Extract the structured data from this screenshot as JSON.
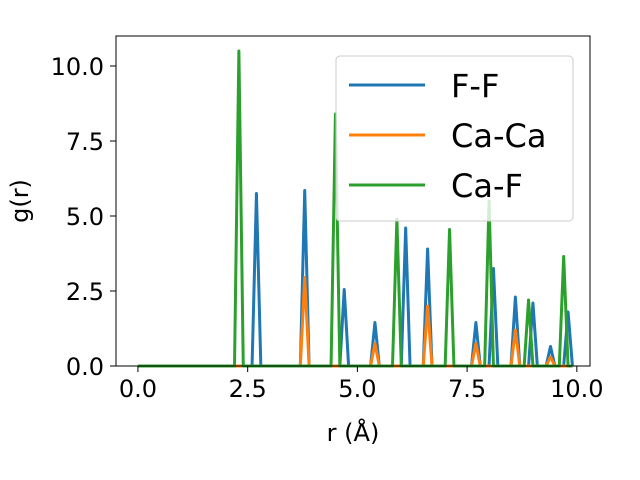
{
  "chart_data": {
    "type": "line",
    "xlabel": "r (Å)",
    "ylabel": "g(r)",
    "xlim": [
      -0.5,
      10.3
    ],
    "ylim": [
      0,
      11
    ],
    "xticks": [
      0.0,
      2.5,
      5.0,
      7.5,
      10.0
    ],
    "xtick_labels": [
      "0.0",
      "2.5",
      "5.0",
      "7.5",
      "10.0"
    ],
    "yticks": [
      0.0,
      2.5,
      5.0,
      7.5,
      10.0
    ],
    "ytick_labels": [
      "0.0",
      "2.5",
      "5.0",
      "7.5",
      "10.0"
    ],
    "grid": false,
    "legend_position": "top-right",
    "series": [
      {
        "name": "F-F",
        "color": "#1f77b4",
        "x": [
          0.0,
          2.6,
          2.7,
          2.8,
          3.7,
          3.8,
          3.9,
          4.6,
          4.7,
          4.8,
          5.3,
          5.4,
          5.5,
          6.0,
          6.1,
          6.2,
          6.5,
          6.6,
          6.7,
          7.6,
          7.7,
          7.8,
          7.9,
          8.0,
          8.1,
          8.2,
          8.5,
          8.6,
          8.7,
          8.9,
          9.0,
          9.1,
          9.3,
          9.4,
          9.5,
          9.7,
          9.8,
          9.9
        ],
        "y": [
          0,
          0,
          5.75,
          0,
          0,
          5.85,
          0,
          0,
          2.55,
          0,
          0,
          1.45,
          0,
          0,
          4.6,
          0,
          0,
          3.9,
          0,
          0,
          1.45,
          0,
          0,
          0,
          3.25,
          0,
          0,
          2.3,
          0,
          0,
          2.1,
          0,
          0,
          0.65,
          0,
          0,
          1.8,
          0
        ]
      },
      {
        "name": "Ca-Ca",
        "color": "#ff7f0e",
        "x": [
          0.0,
          3.7,
          3.8,
          3.9,
          5.3,
          5.4,
          5.5,
          6.5,
          6.6,
          6.7,
          7.6,
          7.7,
          7.8,
          8.5,
          8.6,
          8.7,
          9.3,
          9.4,
          9.5,
          9.9
        ],
        "y": [
          0,
          0,
          2.95,
          0,
          0,
          0.75,
          0,
          0,
          2.0,
          0,
          0,
          0.75,
          0,
          0,
          1.2,
          0,
          0,
          0.3,
          0,
          0
        ]
      },
      {
        "name": "Ca-F",
        "color": "#2ca02c",
        "x": [
          0.0,
          2.2,
          2.3,
          2.4,
          4.4,
          4.5,
          4.6,
          5.8,
          5.9,
          6.0,
          7.0,
          7.1,
          7.2,
          7.9,
          8.0,
          8.1,
          8.8,
          8.9,
          9.0,
          9.6,
          9.7,
          9.8,
          9.9
        ],
        "y": [
          0,
          0,
          10.5,
          0,
          0,
          8.4,
          0,
          0,
          4.9,
          0,
          0,
          4.55,
          0,
          0,
          5.5,
          0,
          0,
          2.2,
          0,
          0,
          3.65,
          0,
          0
        ]
      }
    ]
  }
}
